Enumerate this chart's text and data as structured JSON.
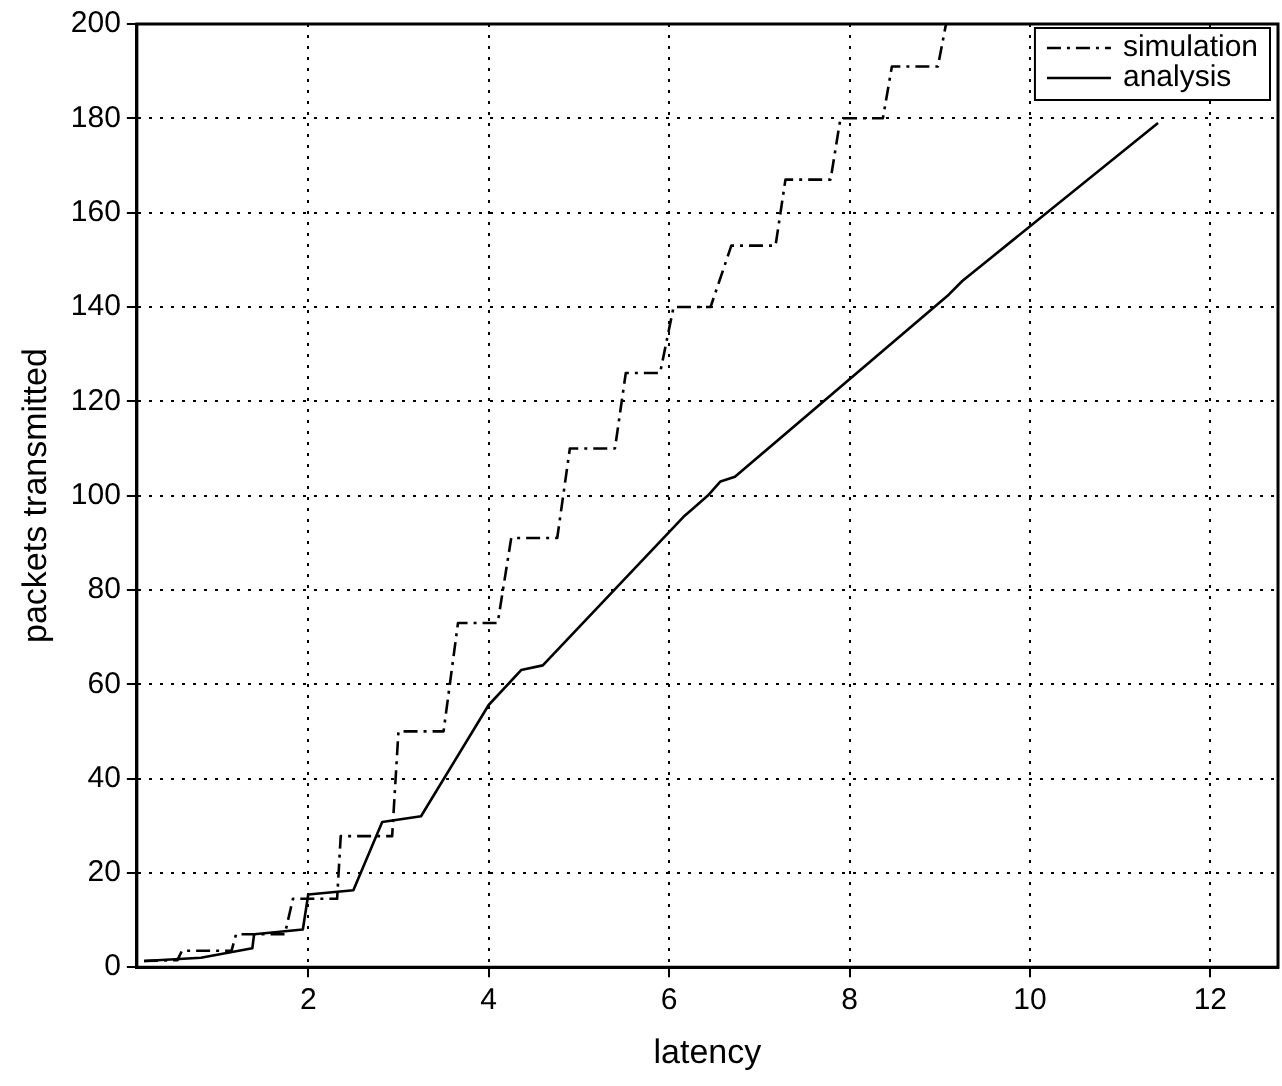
{
  "chart_data": {
    "type": "line",
    "xlabel": "latency",
    "ylabel": "packets transmitted",
    "xlim": [
      0.1,
      12.75
    ],
    "xticks": [
      2,
      4,
      6,
      8,
      10,
      12
    ],
    "ylim": [
      0,
      200
    ],
    "yticks": [
      0,
      20,
      40,
      60,
      80,
      100,
      120,
      140,
      160,
      180,
      200
    ],
    "grid": true,
    "legend": "top right",
    "marker": "none",
    "series": [
      {
        "name": "simulation",
        "color": "#000000",
        "line_style": "dashed",
        "x": [
          0.18,
          0.55,
          0.6,
          1.15,
          1.2,
          1.74,
          1.83,
          2.32,
          2.36,
          2.93,
          3.0,
          3.5,
          3.66,
          4.1,
          4.25,
          4.76,
          4.9,
          5.4,
          5.52,
          5.9,
          6.05,
          6.46,
          6.69,
          7.18,
          7.29,
          7.79,
          7.9,
          8.37,
          8.47,
          8.98,
          9.07
        ],
        "values": [
          1.3,
          1.5,
          3.5,
          3.5,
          7,
          7,
          14.5,
          14.5,
          27.8,
          27.8,
          50,
          50,
          73,
          73,
          91,
          91,
          110,
          110,
          126,
          126,
          140,
          140,
          153,
          153,
          167,
          167,
          180,
          180,
          191,
          191,
          200
        ]
      },
      {
        "name": "analysis",
        "color": "#000000",
        "line_style": "solid",
        "x": [
          0.18,
          0.81,
          1.38,
          1.4,
          1.94,
          2.0,
          2.5,
          2.82,
          3.25,
          4.0,
          4.36,
          4.6,
          6.16,
          6.43,
          6.57,
          6.73,
          9.1,
          9.25,
          11.42
        ],
        "values": [
          1.3,
          2,
          4,
          7,
          8,
          15.4,
          16.3,
          30.8,
          32,
          55.6,
          63,
          64,
          95.5,
          100,
          103,
          104,
          142.6,
          145.5,
          179
        ]
      }
    ]
  }
}
